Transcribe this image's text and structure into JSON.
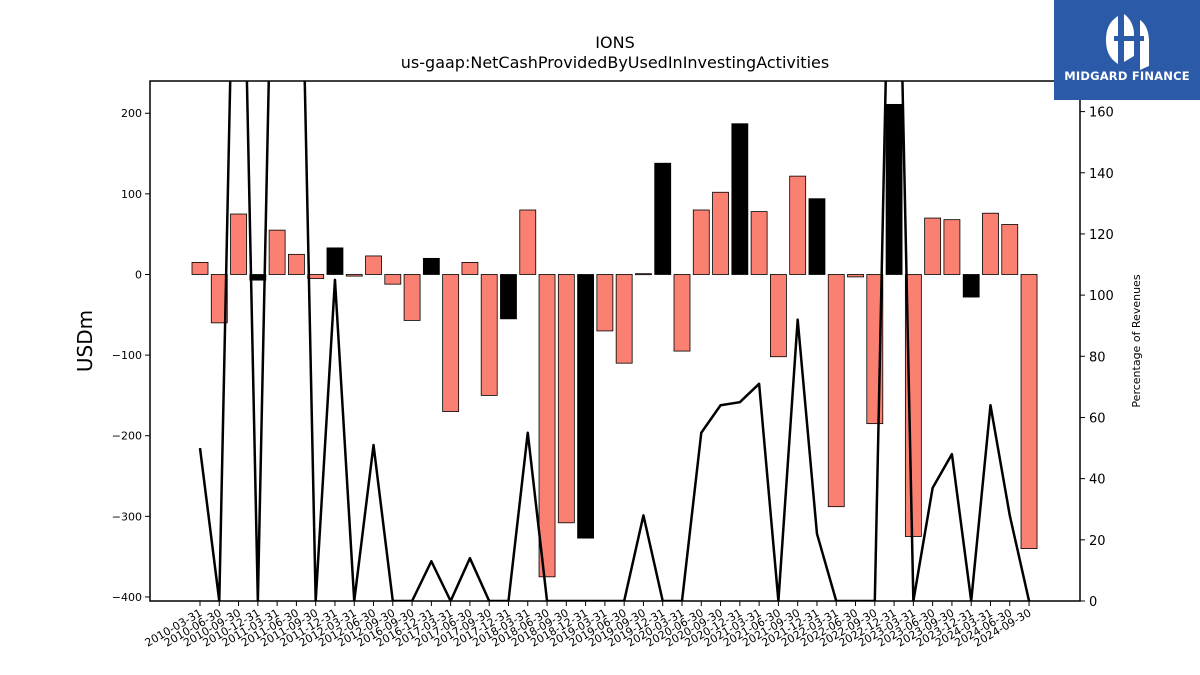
{
  "brand": {
    "name": "MIDGARD FINANCE",
    "bg_color": "#2b5aa8"
  },
  "chart_data": {
    "type": "bar+line",
    "title": "IONS",
    "subtitle": "us-gaap:NetCashProvidedByUsedInInvestingActivities",
    "ylabel": "USDm",
    "y2label": "Percentage of Revenues",
    "ylim": [
      -405,
      240
    ],
    "y2lim": [
      0,
      170
    ],
    "yticks": [
      -400,
      -300,
      -200,
      -100,
      0,
      100,
      200
    ],
    "y2ticks": [
      0,
      20,
      40,
      60,
      80,
      100,
      120,
      140,
      160
    ],
    "colors": {
      "quarterly": "#fa8072",
      "annual": "#000000",
      "line": "#000000"
    },
    "x": [
      "2010-03-31",
      "2010-06-30",
      "2010-09-30",
      "2010-12-31",
      "2011-03-31",
      "2011-06-30",
      "2011-09-30",
      "2011-12-31",
      "2012-03-31",
      "2012-06-30",
      "2012-09-30",
      "2016-09-30",
      "2016-12-31",
      "2017-03-31",
      "2017-06-30",
      "2017-09-30",
      "2017-12-31",
      "2018-03-31",
      "2018-06-30",
      "2018-09-30",
      "2018-12-31",
      "2019-03-31",
      "2019-06-30",
      "2019-09-30",
      "2019-12-31",
      "2020-03-31",
      "2020-06-30",
      "2020-09-30",
      "2020-12-31",
      "2021-03-31",
      "2021-06-30",
      "2021-09-30",
      "2021-12-31",
      "2022-03-31",
      "2022-06-30",
      "2022-09-30",
      "2022-12-31",
      "2023-03-31",
      "2023-06-30",
      "2023-09-30",
      "2023-12-31",
      "2024-03-31",
      "2024-06-30",
      "2024-09-30"
    ],
    "values": [
      15,
      -60,
      75,
      -7,
      55,
      25,
      -5,
      33,
      -2,
      23,
      -12,
      -57,
      20,
      -170,
      15,
      -150,
      -55,
      80,
      -375,
      -308,
      -327,
      -70,
      -110,
      1,
      138,
      -95,
      80,
      102,
      187,
      78,
      -102,
      122,
      94,
      -288,
      -3,
      -185,
      211,
      -325,
      70,
      68,
      -28,
      76,
      62,
      -340
    ],
    "annual": [
      false,
      false,
      false,
      true,
      false,
      false,
      false,
      true,
      false,
      false,
      false,
      false,
      true,
      false,
      false,
      false,
      true,
      false,
      false,
      false,
      true,
      false,
      false,
      false,
      true,
      false,
      false,
      false,
      true,
      false,
      false,
      false,
      true,
      false,
      false,
      false,
      true,
      false,
      false,
      false,
      true,
      false,
      false,
      false
    ],
    "pct_revenue": [
      50,
      0,
      300,
      0,
      300,
      300,
      0,
      105,
      0,
      51,
      0,
      0,
      13,
      0,
      14,
      0,
      0,
      55,
      0,
      0,
      0,
      0,
      0,
      28,
      0,
      0,
      55,
      64,
      65,
      71,
      0,
      92,
      22,
      0,
      0,
      0,
      300,
      0,
      37,
      48,
      0,
      64,
      28,
      0
    ]
  }
}
